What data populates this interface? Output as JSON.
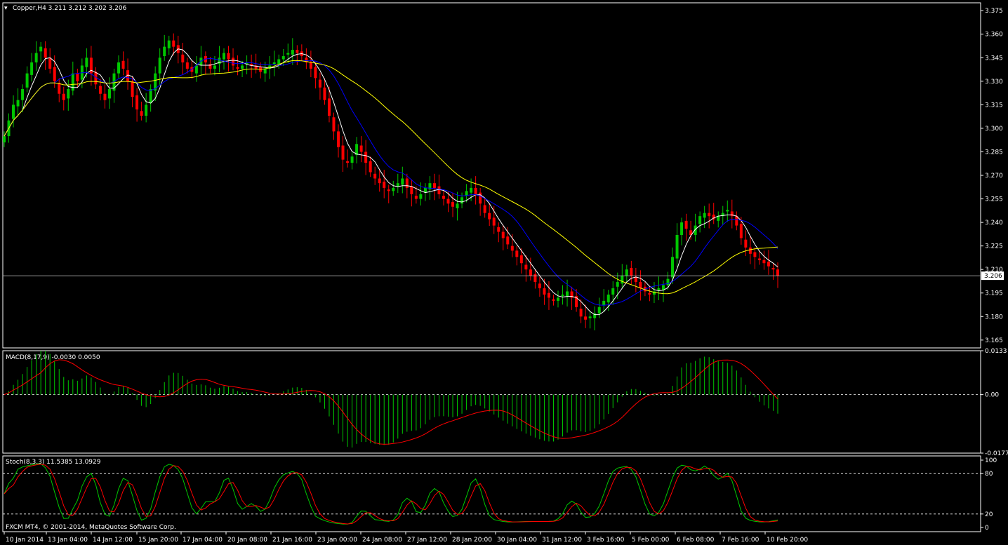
{
  "header": {
    "symbol_label": "Copper,H4  3.211 3.212 3.202 3.206"
  },
  "footer": {
    "copyright": "FXCM MT4, © 2001-2014, MetaQuotes Software Corp."
  },
  "colors": {
    "bull": "#00c800",
    "bear": "#ff0000",
    "ma_fast": "#ffffff",
    "ma_mid": "#0000ff",
    "ma_slow": "#ffff00",
    "macd_hist": "#00c800",
    "macd_signal": "#ff0000",
    "stoch_main": "#00c800",
    "stoch_signal": "#ff0000",
    "price_line": "#c0c0c0"
  },
  "chart_data": [
    {
      "type": "candlestick",
      "panel": "price",
      "title": "Copper,H4  3.211 3.212 3.202 3.206",
      "ylim": [
        3.16,
        3.38
      ],
      "y_ticks": [
        "3.375",
        "3.360",
        "3.345",
        "3.330",
        "3.315",
        "3.300",
        "3.285",
        "3.270",
        "3.255",
        "3.240",
        "3.225",
        "3.210",
        "3.195",
        "3.180",
        "3.165"
      ],
      "current_price": "3.206",
      "x_labels": [
        "10 Jan 2014",
        "13 Jan 04:00",
        "14 Jan 12:00",
        "15 Jan 20:00",
        "17 Jan 04:00",
        "20 Jan 08:00",
        "21 Jan 16:00",
        "23 Jan 00:00",
        "24 Jan 08:00",
        "27 Jan 12:00",
        "28 Jan 20:00",
        "30 Jan 04:00",
        "31 Jan 12:00",
        "3 Feb 16:00",
        "5 Feb 00:00",
        "6 Feb 08:00",
        "7 Feb 16:00",
        "10 Feb 20:00"
      ],
      "closes": [
        3.295,
        3.305,
        3.315,
        3.318,
        3.325,
        3.335,
        3.342,
        3.348,
        3.352,
        3.345,
        3.338,
        3.33,
        3.322,
        3.318,
        3.325,
        3.335,
        3.33,
        3.34,
        3.345,
        3.335,
        3.328,
        3.322,
        3.318,
        3.325,
        3.335,
        3.342,
        3.338,
        3.33,
        3.32,
        3.312,
        3.308,
        3.315,
        3.325,
        3.335,
        3.345,
        3.352,
        3.356,
        3.352,
        3.348,
        3.342,
        3.338,
        3.336,
        3.34,
        3.345,
        3.342,
        3.338,
        3.34,
        3.345,
        3.348,
        3.344,
        3.34,
        3.338,
        3.34,
        3.342,
        3.34,
        3.338,
        3.336,
        3.338,
        3.34,
        3.342,
        3.344,
        3.346,
        3.348,
        3.35,
        3.348,
        3.346,
        3.342,
        3.338,
        3.332,
        3.326,
        3.318,
        3.308,
        3.298,
        3.288,
        3.28,
        3.278,
        3.282,
        3.29,
        3.285,
        3.278,
        3.272,
        3.268,
        3.265,
        3.262,
        3.26,
        3.262,
        3.265,
        3.268,
        3.262,
        3.258,
        3.255,
        3.258,
        3.262,
        3.265,
        3.262,
        3.258,
        3.255,
        3.252,
        3.25,
        3.252,
        3.256,
        3.26,
        3.262,
        3.258,
        3.252,
        3.246,
        3.242,
        3.238,
        3.234,
        3.23,
        3.226,
        3.222,
        3.218,
        3.214,
        3.21,
        3.206,
        3.202,
        3.198,
        3.194,
        3.192,
        3.19,
        3.192,
        3.194,
        3.196,
        3.192,
        3.186,
        3.18,
        3.178,
        3.18,
        3.182,
        3.186,
        3.19,
        3.194,
        3.198,
        3.202,
        3.206,
        3.21,
        3.206,
        3.202,
        3.198,
        3.196,
        3.194,
        3.196,
        3.198,
        3.2,
        3.204,
        3.218,
        3.232,
        3.24,
        3.236,
        3.232,
        3.238,
        3.244,
        3.246,
        3.244,
        3.242,
        3.244,
        3.246,
        3.248,
        3.244,
        3.238,
        3.23,
        3.224,
        3.22,
        3.218,
        3.216,
        3.214,
        3.212,
        3.21,
        3.206
      ]
    },
    {
      "type": "macd",
      "panel": "macd",
      "title": "MACD(8,17,9) -0.0030 0.0050",
      "ylim": [
        -0.0177,
        0.0133
      ],
      "y_ticks": [
        "0.0133",
        "0.00",
        "-0.0177"
      ]
    },
    {
      "type": "stochastic",
      "panel": "stoch",
      "title": "Stoch(8,3,3) 11.5385 13.0929",
      "ylim": [
        0,
        100
      ],
      "y_ticks": [
        "100",
        "80",
        "20",
        "0"
      ],
      "levels": [
        80,
        20
      ]
    }
  ]
}
